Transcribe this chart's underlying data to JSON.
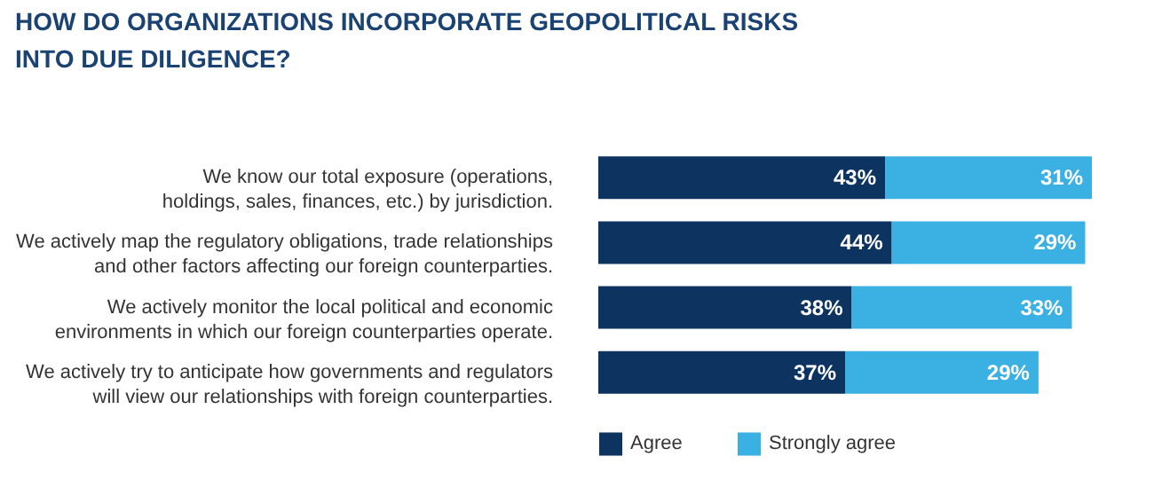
{
  "chart_data": {
    "type": "bar",
    "orientation": "horizontal",
    "stacked": true,
    "data_labels": true,
    "legend": "bottom",
    "title": "HOW DO ORGANIZATIONS INCORPORATE GEOPOLITICAL RISKS INTO DUE DILIGENCE?",
    "categories": [
      "We know our total exposure (operations, holdings, sales, finances, etc.) by jurisdiction.",
      "We actively map the regulatory obligations, trade relationships and other factors affecting our foreign counterparties.",
      "We actively monitor the local political and economic environments in which our foreign counterparties operate.",
      "We actively try to anticipate how governments and regulators will view our relationships with foreign counterparties."
    ],
    "series": [
      {
        "name": "Agree",
        "color": "#0d3361",
        "values": [
          43,
          44,
          38,
          37
        ],
        "value_labels": [
          "43%",
          "44%",
          "38%",
          "37%"
        ]
      },
      {
        "name": "Strongly agree",
        "color": "#3bb0e3",
        "values": [
          31,
          29,
          33,
          29
        ],
        "value_labels": [
          "31%",
          "29%",
          "33%",
          "29%"
        ]
      }
    ]
  }
}
